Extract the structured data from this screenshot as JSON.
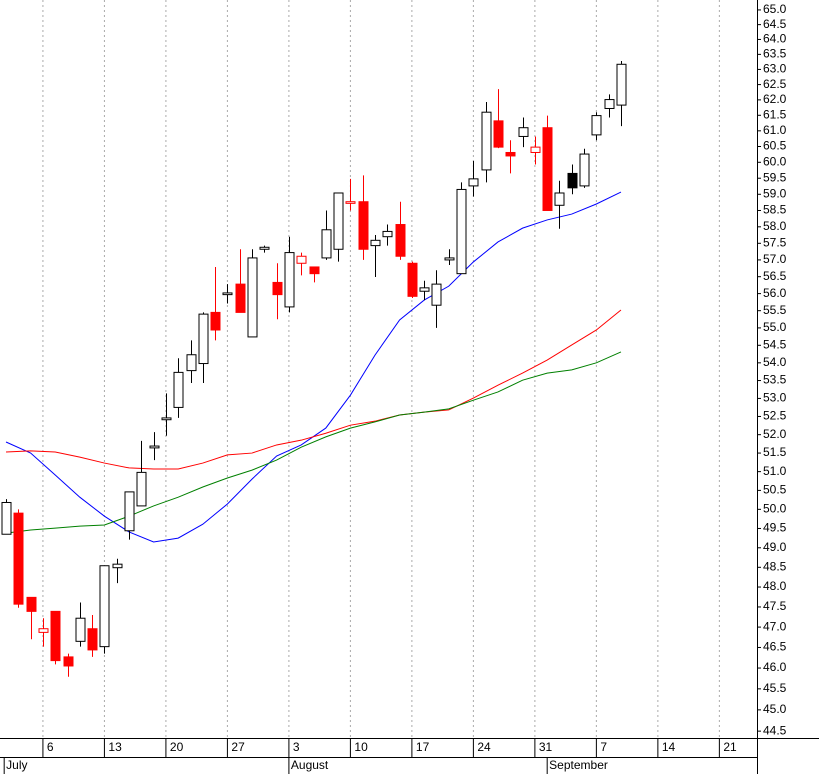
{
  "chart_data": {
    "type": "candlestick",
    "log_y": true,
    "grid": true,
    "color_up": "#000000",
    "color_down": "#ff0000",
    "x": [
      0,
      1,
      2,
      3,
      4,
      5,
      6,
      7,
      8,
      9,
      10,
      11,
      12,
      13,
      14,
      15,
      16,
      17,
      18,
      19,
      20,
      21,
      22,
      23,
      24,
      25,
      26,
      27,
      28,
      29,
      30,
      31,
      32,
      33,
      34,
      35,
      36,
      37,
      38,
      39,
      40,
      41,
      42,
      43,
      44,
      45,
      46,
      47,
      48,
      49,
      50
    ],
    "open": [
      49.35,
      49.9,
      47.74,
      46.87,
      47.39,
      46.27,
      46.65,
      46.96,
      46.52,
      48.49,
      49.44,
      50.09,
      51.64,
      52.41,
      52.75,
      53.78,
      53.98,
      55.45,
      55.97,
      56.28,
      54.74,
      57.32,
      56.33,
      55.61,
      56.9,
      56.79,
      57.06,
      57.32,
      58.72,
      58.77,
      57.43,
      57.7,
      58.07,
      56.9,
      56.07,
      55.66,
      57.0,
      56.59,
      59.26,
      59.76,
      61.32,
      60.31,
      60.82,
      60.31,
      61.1,
      58.66,
      59.65,
      59.26,
      60.87,
      61.72,
      61.83
    ],
    "high": [
      50.27,
      50.0,
      47.74,
      47.22,
      47.39,
      46.35,
      47.61,
      47.3,
      48.54,
      48.72,
      50.46,
      51.83,
      52.07,
      53.14,
      54.13,
      54.64,
      55.45,
      56.79,
      56.28,
      57.32,
      57.32,
      57.43,
      56.9,
      57.7,
      57.22,
      56.79,
      58.5,
      59.04,
      59.48,
      59.59,
      57.75,
      58.07,
      58.77,
      56.95,
      56.38,
      56.69,
      57.32,
      59.37,
      60.04,
      61.93,
      62.35,
      60.7,
      61.43,
      60.82,
      61.49,
      59.42,
      59.93,
      60.43,
      61.6,
      62.18,
      63.28
    ],
    "low": [
      49.35,
      47.48,
      46.7,
      46.52,
      46.09,
      45.79,
      46.52,
      46.27,
      46.35,
      48.1,
      49.21,
      50.09,
      51.31,
      51.97,
      52.46,
      53.43,
      53.43,
      54.64,
      55.71,
      55.45,
      54.74,
      57.22,
      55.25,
      55.45,
      56.54,
      56.33,
      57.0,
      56.95,
      58.5,
      57.0,
      56.49,
      57.43,
      57.0,
      55.87,
      55.81,
      55.0,
      56.85,
      56.59,
      58.93,
      59.37,
      60.45,
      59.65,
      60.48,
      59.93,
      58.5,
      57.94,
      59.0,
      59.2,
      60.7,
      61.43,
      61.15
    ],
    "close": [
      50.18,
      47.57,
      47.39,
      46.96,
      46.18,
      46.05,
      47.22,
      46.44,
      48.54,
      48.58,
      50.46,
      50.98,
      51.69,
      52.46,
      53.73,
      54.23,
      55.4,
      54.94,
      56.02,
      55.45,
      57.06,
      57.38,
      55.97,
      57.22,
      57.11,
      56.59,
      57.91,
      59.04,
      58.77,
      57.32,
      57.59,
      57.86,
      57.11,
      55.92,
      56.17,
      56.28,
      57.06,
      59.15,
      59.48,
      61.6,
      60.48,
      60.2,
      61.1,
      60.48,
      58.5,
      59.04,
      59.2,
      60.26,
      61.49,
      62.01,
      63.17
    ],
    "lines": [
      {
        "color": "#0000ff",
        "x": [
          0,
          2,
          4,
          6,
          8,
          10,
          12,
          14,
          16,
          18,
          20,
          22,
          24,
          26,
          28,
          30,
          32,
          34,
          36,
          38,
          40,
          42,
          44,
          46,
          48,
          50
        ],
        "values": [
          51.8,
          51.5,
          50.91,
          50.32,
          49.82,
          49.41,
          49.15,
          49.25,
          49.61,
          50.14,
          50.8,
          51.42,
          51.72,
          52.18,
          53.09,
          54.22,
          55.23,
          55.81,
          56.22,
          56.94,
          57.54,
          57.96,
          58.21,
          58.39,
          58.7,
          59.07
        ]
      },
      {
        "color": "#ff0000",
        "x": [
          0,
          2,
          4,
          6,
          8,
          10,
          12,
          14,
          16,
          18,
          20,
          22,
          24,
          26,
          28,
          30,
          32,
          34,
          36,
          38,
          40,
          42,
          44,
          46,
          48,
          50
        ],
        "values": [
          51.53,
          51.56,
          51.53,
          51.39,
          51.23,
          51.1,
          51.07,
          51.07,
          51.23,
          51.45,
          51.5,
          51.72,
          51.85,
          52.04,
          52.26,
          52.37,
          52.54,
          52.62,
          52.68,
          53.01,
          53.37,
          53.71,
          54.08,
          54.51,
          54.94,
          55.52
        ]
      },
      {
        "color": "#008000",
        "x": [
          0,
          2,
          4,
          6,
          8,
          10,
          12,
          14,
          16,
          18,
          20,
          22,
          24,
          26,
          28,
          30,
          32,
          34,
          36,
          38,
          40,
          42,
          44,
          46,
          48,
          50
        ],
        "values": [
          49.38,
          49.46,
          49.51,
          49.56,
          49.59,
          49.82,
          50.09,
          50.32,
          50.59,
          50.83,
          51.04,
          51.31,
          51.66,
          51.94,
          52.18,
          52.35,
          52.54,
          52.62,
          52.71,
          52.95,
          53.18,
          53.51,
          53.71,
          53.8,
          54.0,
          54.31
        ]
      }
    ],
    "xlim": [
      -0.49,
      61.06
    ],
    "xticks": [
      {
        "value": 3,
        "label": "6"
      },
      {
        "value": 8,
        "label": "13"
      },
      {
        "value": 13,
        "label": "20"
      },
      {
        "value": 18,
        "label": "27"
      },
      {
        "value": 23,
        "label": "3"
      },
      {
        "value": 28,
        "label": "10"
      },
      {
        "value": 33,
        "label": "17"
      },
      {
        "value": 38,
        "label": "24"
      },
      {
        "value": 43,
        "label": "31"
      },
      {
        "value": 48,
        "label": "7"
      },
      {
        "value": 53,
        "label": "14"
      },
      {
        "value": 58,
        "label": "21"
      }
    ],
    "month_ticks": [
      {
        "value": -0.15,
        "label": "July"
      },
      {
        "value": 23,
        "label": "August"
      },
      {
        "value": 44,
        "label": "September"
      }
    ],
    "ylim": [
      44.34,
      65.34
    ],
    "yticks": [
      {
        "value": 65,
        "label": "65.0"
      },
      64.5,
      {
        "value": 64,
        "label": "64.0"
      },
      63.5,
      {
        "value": 63,
        "label": "63.0"
      },
      62.5,
      {
        "value": 62,
        "label": "62.0"
      },
      61.5,
      {
        "value": 61,
        "label": "61.0"
      },
      60.5,
      {
        "value": 60,
        "label": "60.0"
      },
      59.5,
      {
        "value": 59,
        "label": "59.0"
      },
      58.5,
      {
        "value": 58,
        "label": "58.0"
      },
      57.5,
      {
        "value": 57,
        "label": "57.0"
      },
      56.5,
      {
        "value": 56,
        "label": "56.0"
      },
      55.5,
      {
        "value": 55,
        "label": "55.0"
      },
      54.5,
      {
        "value": 54,
        "label": "54.0"
      },
      53.5,
      {
        "value": 53,
        "label": "53.0"
      },
      52.5,
      {
        "value": 52,
        "label": "52.0"
      },
      51.5,
      {
        "value": 51,
        "label": "51.0"
      },
      50.5,
      {
        "value": 50,
        "label": "50.0"
      },
      49.5,
      {
        "value": 49,
        "label": "49.0"
      },
      48.5,
      {
        "value": 48,
        "label": "48.0"
      },
      47.5,
      {
        "value": 47,
        "label": "47.0"
      },
      46.5,
      {
        "value": 46,
        "label": "46.0"
      },
      45.5,
      {
        "value": 45,
        "label": "45.0"
      },
      44.5
    ]
  }
}
